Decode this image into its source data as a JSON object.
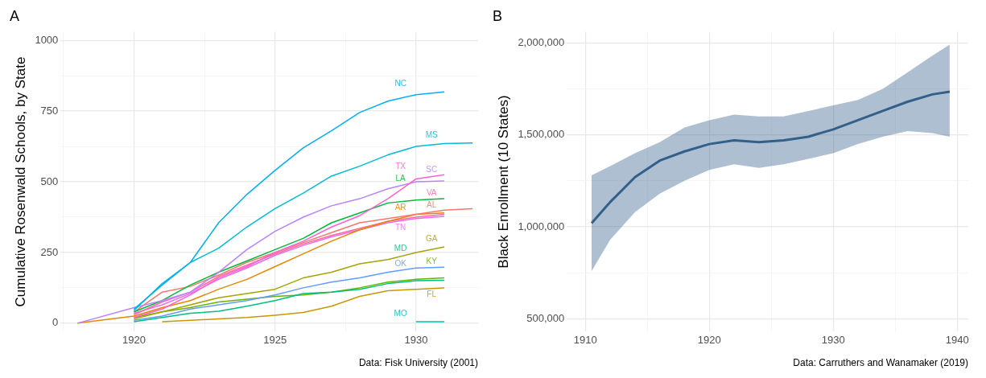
{
  "chart_data": [
    {
      "type": "line",
      "title": "A",
      "ylabel": "Cumulative Rosenwald Schools, by State",
      "marker": "none",
      "grid": true,
      "xlim": [
        1917.4,
        1932.2
      ],
      "ylim": [
        -30,
        1030
      ],
      "xticks": [
        {
          "value": 1917.5,
          "label": null
        },
        1920,
        {
          "value": 1922.5,
          "label": null
        },
        1925,
        {
          "value": 1927.5,
          "label": null
        },
        1930
      ],
      "yticks": [
        0,
        {
          "value": 125,
          "label": null
        },
        250,
        {
          "value": 375,
          "label": null
        },
        500,
        {
          "value": 625,
          "label": null
        },
        750,
        {
          "value": 875,
          "label": null
        },
        1000
      ],
      "annotations": [
        "Data: Fisk University (2001)"
      ],
      "series": [
        {
          "name": "NC",
          "color": "#00b0f6",
          "x": [
            1920,
            1921,
            1922,
            1923,
            1924,
            1925,
            1926,
            1927,
            1928,
            1929,
            1930,
            1931
          ],
          "values": [
            50,
            135,
            215,
            355,
            455,
            540,
            620,
            680,
            745,
            785,
            808,
            818
          ]
        },
        {
          "name": "MS",
          "color": "#00bcd8",
          "x": [
            1920,
            1921,
            1922,
            1923,
            1924,
            1925,
            1926,
            1927,
            1928,
            1929,
            1930,
            1931,
            1932
          ],
          "values": [
            45,
            140,
            215,
            265,
            340,
            405,
            460,
            520,
            555,
            595,
            625,
            635,
            637
          ]
        },
        {
          "name": "TX",
          "color": "#fd61d1",
          "x": [
            1920,
            1921,
            1922,
            1923,
            1924,
            1925,
            1926,
            1927,
            1928,
            1929,
            1930,
            1931
          ],
          "values": [
            20,
            50,
            100,
            160,
            200,
            250,
            290,
            340,
            380,
            440,
            510,
            525
          ]
        },
        {
          "name": "SC",
          "color": "#b983ff",
          "x": [
            1918,
            1920,
            1921,
            1922,
            1923,
            1924,
            1925,
            1926,
            1927,
            1928,
            1929,
            1930,
            1931
          ],
          "values": [
            0,
            55,
            80,
            110,
            180,
            260,
            325,
            375,
            415,
            440,
            475,
            500,
            503
          ]
        },
        {
          "name": "LA",
          "color": "#00ba38",
          "x": [
            1920,
            1921,
            1922,
            1923,
            1924,
            1925,
            1926,
            1927,
            1928,
            1929,
            1930,
            1931
          ],
          "values": [
            40,
            80,
            135,
            180,
            220,
            260,
            300,
            355,
            390,
            425,
            435,
            440
          ]
        },
        {
          "name": "AL",
          "color": "#f8766d",
          "x": [
            1920,
            1921,
            1922,
            1923,
            1924,
            1925,
            1926,
            1927,
            1928,
            1929,
            1930,
            1931,
            1932
          ],
          "values": [
            40,
            110,
            130,
            170,
            215,
            250,
            285,
            320,
            355,
            370,
            385,
            400,
            405
          ]
        },
        {
          "name": "AR",
          "color": "#e58700",
          "x": [
            1918,
            1920,
            1921,
            1922,
            1923,
            1924,
            1925,
            1926,
            1927,
            1928,
            1929,
            1930,
            1931
          ],
          "values": [
            0,
            25,
            55,
            80,
            120,
            155,
            200,
            245,
            290,
            330,
            360,
            385,
            390
          ]
        },
        {
          "name": "VA",
          "color": "#ff67a4",
          "x": [
            1920,
            1921,
            1922,
            1923,
            1924,
            1925,
            1926,
            1927,
            1928,
            1929,
            1930,
            1931
          ],
          "values": [
            30,
            75,
            110,
            165,
            205,
            245,
            280,
            310,
            335,
            360,
            375,
            385
          ]
        },
        {
          "name": "TN",
          "color": "#e76bf3",
          "x": [
            1920,
            1921,
            1922,
            1923,
            1924,
            1925,
            1926,
            1927,
            1928,
            1929,
            1930,
            1931
          ],
          "values": [
            35,
            65,
            105,
            155,
            195,
            240,
            275,
            305,
            330,
            355,
            370,
            378
          ]
        },
        {
          "name": "GA",
          "color": "#a3a500",
          "x": [
            1920,
            1921,
            1922,
            1923,
            1924,
            1925,
            1926,
            1927,
            1928,
            1929,
            1930,
            1931
          ],
          "values": [
            15,
            40,
            65,
            90,
            105,
            120,
            160,
            180,
            210,
            225,
            250,
            270
          ]
        },
        {
          "name": "OK",
          "color": "#619cff",
          "x": [
            1920,
            1921,
            1922,
            1923,
            1924,
            1925,
            1926,
            1927,
            1928,
            1929,
            1930,
            1931
          ],
          "values": [
            10,
            25,
            50,
            65,
            80,
            100,
            125,
            145,
            160,
            180,
            195,
            198
          ]
        },
        {
          "name": "MD",
          "color": "#00bf7d",
          "x": [
            1920,
            1921,
            1922,
            1923,
            1924,
            1925,
            1926,
            1927,
            1928,
            1929,
            1930,
            1931
          ],
          "values": [
            5,
            20,
            35,
            42,
            60,
            80,
            105,
            110,
            120,
            140,
            150,
            152
          ]
        },
        {
          "name": "KY",
          "color": "#6bb100",
          "x": [
            1920,
            1921,
            1922,
            1923,
            1924,
            1925,
            1926,
            1927,
            1928,
            1929,
            1930,
            1931
          ],
          "values": [
            20,
            40,
            55,
            75,
            85,
            95,
            100,
            110,
            125,
            145,
            155,
            160
          ]
        },
        {
          "name": "FL",
          "color": "#c99800",
          "x": [
            1921,
            1922,
            1923,
            1924,
            1925,
            1926,
            1927,
            1928,
            1929,
            1930,
            1931
          ],
          "values": [
            5,
            10,
            15,
            20,
            28,
            38,
            60,
            95,
            115,
            120,
            125
          ]
        },
        {
          "name": "MO",
          "color": "#00c0af",
          "x": [
            1930,
            1931
          ],
          "values": [
            5,
            5
          ]
        }
      ]
    },
    {
      "type": "line",
      "title": "B",
      "ylabel": "Black Enrollment (10 States)",
      "marker": "none",
      "grid": true,
      "xlim": [
        1908.5,
        1940.9
      ],
      "ylim": [
        430000,
        2060000
      ],
      "xticks": [
        1910,
        {
          "value": 1915,
          "label": null
        },
        1920,
        {
          "value": 1925,
          "label": null
        },
        1930,
        {
          "value": 1935,
          "label": null
        },
        1940
      ],
      "yticks": [
        {
          "value": 500000,
          "label": "500,000"
        },
        {
          "value": 750000,
          "label": null
        },
        {
          "value": 1000000,
          "label": "1,000,000"
        },
        {
          "value": 1250000,
          "label": null
        },
        {
          "value": 1500000,
          "label": "1,500,000"
        },
        {
          "value": 1750000,
          "label": null
        },
        {
          "value": 2000000,
          "label": "2,000,000"
        }
      ],
      "annotations": [
        "Data: Carruthers and Wanamaker (2019)"
      ],
      "series": [
        {
          "color": "#33608a",
          "x": [
            1910.5,
            1912,
            1914,
            1916,
            1918,
            1920,
            1922,
            1924,
            1926,
            1928,
            1930,
            1932,
            1934,
            1936,
            1938,
            1939.4
          ],
          "values": [
            1020000,
            1135000,
            1270000,
            1360000,
            1410000,
            1450000,
            1470000,
            1460000,
            1470000,
            1490000,
            1530000,
            1580000,
            1630000,
            1680000,
            1720000,
            1735000
          ],
          "lower": [
            760000,
            930000,
            1080000,
            1180000,
            1250000,
            1310000,
            1340000,
            1320000,
            1340000,
            1370000,
            1400000,
            1450000,
            1490000,
            1520000,
            1510000,
            1490000
          ],
          "upper": [
            1280000,
            1330000,
            1400000,
            1460000,
            1540000,
            1580000,
            1610000,
            1600000,
            1600000,
            1630000,
            1660000,
            1690000,
            1750000,
            1840000,
            1930000,
            1990000
          ]
        }
      ]
    }
  ]
}
